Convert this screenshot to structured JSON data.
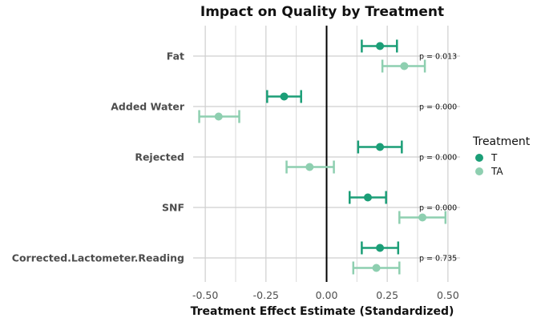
{
  "chart_data": {
    "type": "forest",
    "title": "Impact on Quality by Treatment",
    "xlabel": "Treatment Effect Estimate (Standardized)",
    "ylabel": "",
    "xlim": [
      -0.55,
      0.55
    ],
    "xticks": [
      -0.5,
      -0.25,
      0,
      0.25,
      0.5
    ],
    "xtick_labels": [
      "-0.50",
      "-0.25",
      "0.00",
      "0.25",
      "0.50"
    ],
    "categories": [
      "Fat",
      "Added Water",
      "Rejected",
      "SNF",
      "Corrected.Lactometer.Reading"
    ],
    "p_values": [
      "p = 0.013",
      "p = 0.000",
      "p = 0.000",
      "p = 0.000",
      "p = 0.735"
    ],
    "series": [
      {
        "name": "T",
        "color": "#1b9e77",
        "estimates": [
          0.22,
          -0.175,
          0.22,
          0.17,
          0.22
        ],
        "ci_low": [
          0.145,
          -0.245,
          0.13,
          0.095,
          0.145
        ],
        "ci_high": [
          0.29,
          -0.105,
          0.31,
          0.245,
          0.295
        ]
      },
      {
        "name": "TA",
        "color": "#8ecfb0",
        "estimates": [
          0.32,
          -0.445,
          -0.07,
          0.395,
          0.205
        ],
        "ci_low": [
          0.23,
          -0.525,
          -0.165,
          0.3,
          0.11
        ],
        "ci_high": [
          0.405,
          -0.36,
          0.03,
          0.49,
          0.3
        ]
      }
    ],
    "legend": {
      "title": "Treatment",
      "entries": [
        "T",
        "TA"
      ],
      "position": "right"
    },
    "vline": 0,
    "grid": true
  }
}
